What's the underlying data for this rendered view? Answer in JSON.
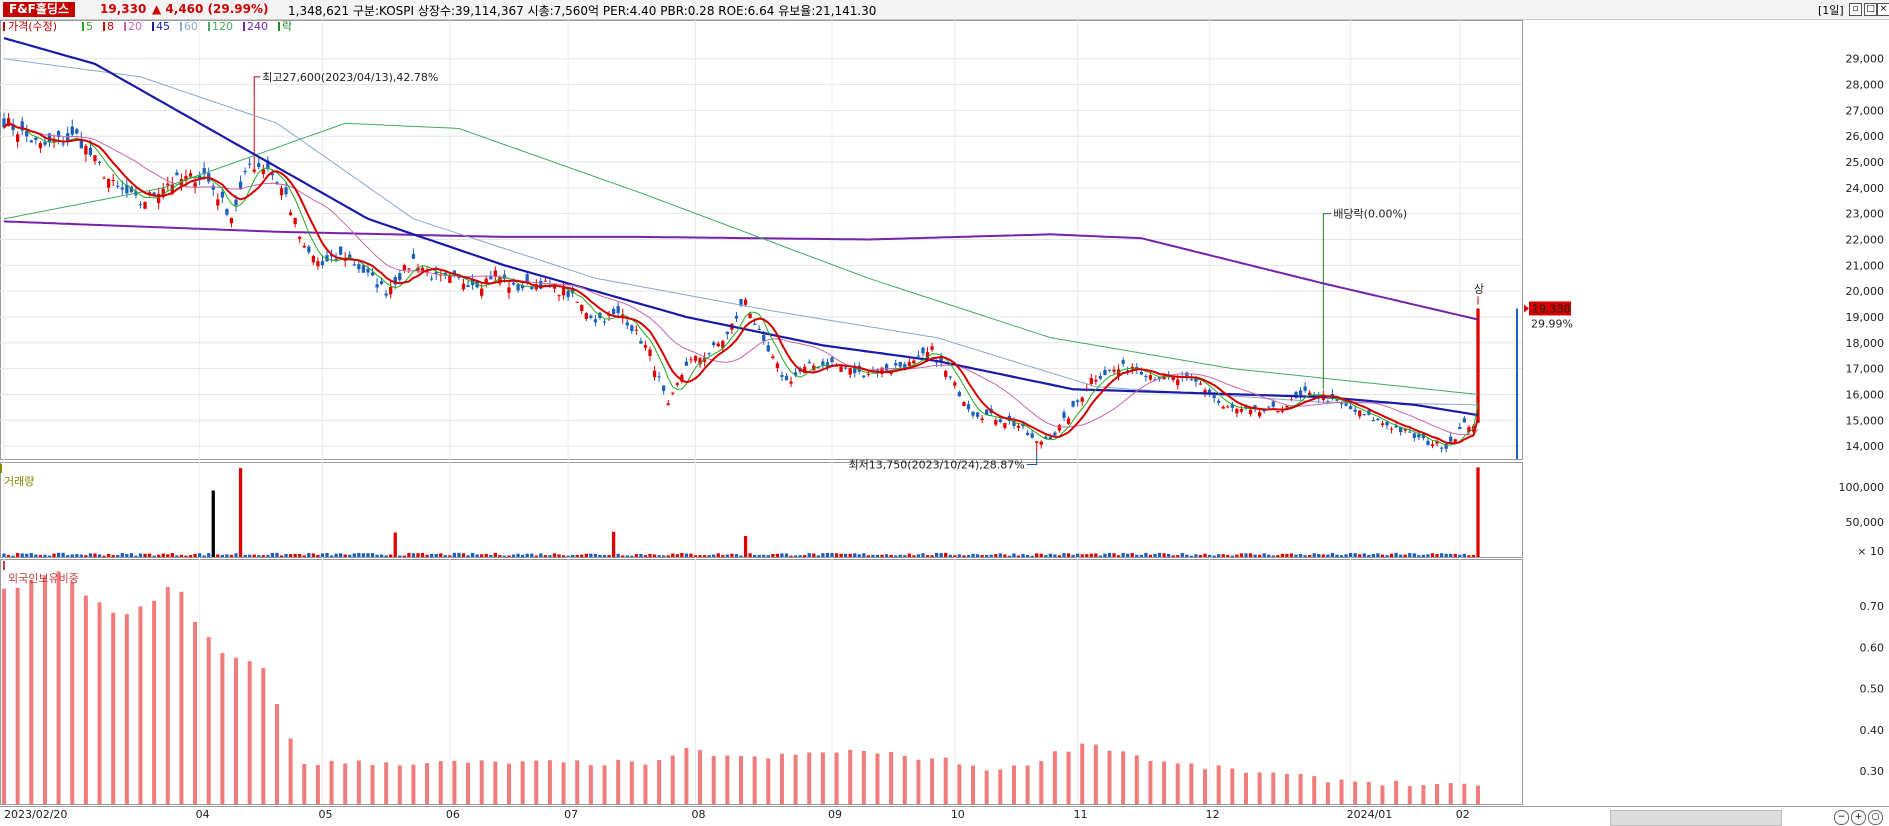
{
  "header": {
    "stock_name": "F&F홀딩스",
    "price": "19,330",
    "change": "▲ 4,460 (29.99%)",
    "info": "1,348,621  구분:KOSPI 상장수:39,114,367 시총:7,560억 PER:4.40 PBR:0.28 ROE:6.64 유보율:21,141.30",
    "period": "[1일]"
  },
  "legend": {
    "price_label": "가격(수정)",
    "ma_labels": [
      "5",
      "8",
      "20",
      "45",
      "60",
      "120",
      "240"
    ],
    "ma_colors": [
      "#22aa22",
      "#d40000",
      "#cc66aa",
      "#1a1aa8",
      "#88aacc",
      "#44aa66",
      "#7722aa"
    ],
    "ex_label": "락",
    "volume_label": "거래량",
    "foreign_label": "외국인보유비중"
  },
  "annotations": {
    "high": "최고27,600(2023/04/13),42.78%",
    "low": "최저13,750(2023/10/24),28.87%",
    "dividend": "배당락(0.00%)",
    "upper_limit": "상",
    "last_price": "19,330",
    "last_pct": "29.99%"
  },
  "colors": {
    "up": "#e00000",
    "down": "#1c5fbf",
    "bg_panel": "#ffffff",
    "grid": "#e6e6e6",
    "foreign": "#f07c7c"
  },
  "chart_data": [
    {
      "type": "candlestick",
      "title": "가격(수정)",
      "x_labels": [
        "2023/02/20",
        "04",
        "05",
        "06",
        "07",
        "08",
        "09",
        "10",
        "11",
        "12",
        "2024/01",
        "02"
      ],
      "y_ticks": [
        14000,
        15000,
        16000,
        17000,
        18000,
        19000,
        20000,
        21000,
        22000,
        23000,
        24000,
        25000,
        26000,
        27000,
        28000,
        29000
      ],
      "ylim": [
        13500,
        30500
      ],
      "anchors": [
        {
          "i": 0,
          "close": 26600
        },
        {
          "i": 8,
          "close": 25600
        },
        {
          "i": 16,
          "close": 26000
        },
        {
          "i": 24,
          "close": 24100
        },
        {
          "i": 30,
          "close": 23400
        },
        {
          "i": 36,
          "close": 24200
        },
        {
          "i": 44,
          "close": 24500
        },
        {
          "i": 50,
          "close": 22900
        },
        {
          "i": 54,
          "close": 24900
        },
        {
          "i": 58,
          "close": 24800
        },
        {
          "i": 62,
          "close": 23700
        },
        {
          "i": 66,
          "close": 21600
        },
        {
          "i": 70,
          "close": 21000
        },
        {
          "i": 75,
          "close": 21400
        },
        {
          "i": 80,
          "close": 20600
        },
        {
          "i": 84,
          "close": 20000
        },
        {
          "i": 90,
          "close": 21200
        },
        {
          "i": 95,
          "close": 20500
        },
        {
          "i": 100,
          "close": 20400
        },
        {
          "i": 105,
          "close": 20300
        },
        {
          "i": 108,
          "close": 20700
        },
        {
          "i": 112,
          "close": 20100
        },
        {
          "i": 118,
          "close": 20300
        },
        {
          "i": 124,
          "close": 19900
        },
        {
          "i": 130,
          "close": 18900
        },
        {
          "i": 136,
          "close": 19100
        },
        {
          "i": 142,
          "close": 17600
        },
        {
          "i": 146,
          "close": 15500
        },
        {
          "i": 150,
          "close": 17200
        },
        {
          "i": 155,
          "close": 17600
        },
        {
          "i": 159,
          "close": 18300
        },
        {
          "i": 163,
          "close": 19700
        },
        {
          "i": 167,
          "close": 17900
        },
        {
          "i": 172,
          "close": 16500
        },
        {
          "i": 177,
          "close": 17100
        },
        {
          "i": 182,
          "close": 17200
        },
        {
          "i": 188,
          "close": 16800
        },
        {
          "i": 194,
          "close": 17000
        },
        {
          "i": 200,
          "close": 17200
        },
        {
          "i": 204,
          "close": 17700
        },
        {
          "i": 208,
          "close": 16600
        },
        {
          "i": 213,
          "close": 15300
        },
        {
          "i": 218,
          "close": 15100
        },
        {
          "i": 223,
          "close": 14800
        },
        {
          "i": 227,
          "close": 14100
        },
        {
          "i": 231,
          "close": 14500
        },
        {
          "i": 235,
          "close": 15400
        },
        {
          "i": 239,
          "close": 16600
        },
        {
          "i": 243,
          "close": 16900
        },
        {
          "i": 248,
          "close": 17100
        },
        {
          "i": 253,
          "close": 16700
        },
        {
          "i": 258,
          "close": 16600
        },
        {
          "i": 263,
          "close": 16400
        },
        {
          "i": 268,
          "close": 15500
        },
        {
          "i": 274,
          "close": 15300
        },
        {
          "i": 280,
          "close": 15400
        },
        {
          "i": 286,
          "close": 16000
        },
        {
          "i": 290,
          "close": 15900
        },
        {
          "i": 295,
          "close": 15500
        },
        {
          "i": 300,
          "close": 15100
        },
        {
          "i": 306,
          "close": 14700
        },
        {
          "i": 312,
          "close": 14200
        },
        {
          "i": 317,
          "close": 14000
        },
        {
          "i": 321,
          "close": 14800
        },
        {
          "i": 323,
          "close": 14870
        },
        {
          "i": 324,
          "close": 19330
        }
      ],
      "count": 325,
      "last": {
        "open": 14900,
        "high": 19330,
        "low": 14900,
        "close": 19330
      },
      "high_point": {
        "i": 55,
        "value": 27600,
        "date": "2023/04/13"
      },
      "low_point": {
        "i": 227,
        "value": 13750,
        "date": "2023/10/24"
      },
      "ma_periods": [
        5,
        8,
        20,
        45,
        60,
        120,
        240
      ],
      "ma240_anchors": [
        {
          "i": 0,
          "v": 22700
        },
        {
          "i": 60,
          "v": 22300
        },
        {
          "i": 110,
          "v": 22100
        },
        {
          "i": 140,
          "v": 22100
        },
        {
          "i": 190,
          "v": 22000
        },
        {
          "i": 230,
          "v": 22200
        },
        {
          "i": 250,
          "v": 22050
        },
        {
          "i": 290,
          "v": 20300
        },
        {
          "i": 324,
          "v": 18900
        }
      ],
      "ma120_anchors": [
        {
          "i": 0,
          "v": 22800
        },
        {
          "i": 35,
          "v": 24000
        },
        {
          "i": 75,
          "v": 26500
        },
        {
          "i": 100,
          "v": 26300
        },
        {
          "i": 140,
          "v": 23800
        },
        {
          "i": 190,
          "v": 20500
        },
        {
          "i": 230,
          "v": 18200
        },
        {
          "i": 270,
          "v": 17000
        },
        {
          "i": 324,
          "v": 16000
        }
      ],
      "ma60_anchors": [
        {
          "i": 0,
          "v": 29000
        },
        {
          "i": 30,
          "v": 28300
        },
        {
          "i": 60,
          "v": 26500
        },
        {
          "i": 90,
          "v": 22800
        },
        {
          "i": 130,
          "v": 20500
        },
        {
          "i": 170,
          "v": 19200
        },
        {
          "i": 205,
          "v": 18200
        },
        {
          "i": 240,
          "v": 16300
        },
        {
          "i": 290,
          "v": 15700
        },
        {
          "i": 324,
          "v": 15600
        }
      ],
      "ma45_anchors": [
        {
          "i": 0,
          "v": 29800
        },
        {
          "i": 20,
          "v": 28800
        },
        {
          "i": 50,
          "v": 25800
        },
        {
          "i": 80,
          "v": 22800
        },
        {
          "i": 110,
          "v": 21000
        },
        {
          "i": 150,
          "v": 19000
        },
        {
          "i": 180,
          "v": 17900
        },
        {
          "i": 205,
          "v": 17300
        },
        {
          "i": 235,
          "v": 16200
        },
        {
          "i": 290,
          "v": 15900
        },
        {
          "i": 310,
          "v": 15600
        },
        {
          "i": 324,
          "v": 15200
        }
      ]
    },
    {
      "type": "bar",
      "title": "거래량",
      "y_ticks": [
        "100,000",
        "50,000",
        "× 10"
      ],
      "ylim_x10": [
        0,
        130000
      ],
      "baseline_x10": 3000,
      "spikes": [
        {
          "i": 46,
          "value": 95000,
          "color": "#000000"
        },
        {
          "i": 52,
          "value": 127000,
          "color": "#e00000"
        },
        {
          "i": 86,
          "value": 35000,
          "color": "#e00000"
        },
        {
          "i": 134,
          "value": 36000,
          "color": "#e00000"
        },
        {
          "i": 163,
          "value": 30000,
          "color": "#e00000"
        },
        {
          "i": 324,
          "value": 128000,
          "color": "#e00000"
        }
      ]
    },
    {
      "type": "bar",
      "title": "외국인보유비중",
      "y_ticks": [
        0.7,
        0.6,
        0.5,
        0.4,
        0.3
      ],
      "ylim": [
        0.22,
        0.8
      ],
      "bar_step": 3,
      "anchors": [
        {
          "i": 0,
          "v": 0.74
        },
        {
          "i": 12,
          "v": 0.78
        },
        {
          "i": 18,
          "v": 0.73
        },
        {
          "i": 25,
          "v": 0.68
        },
        {
          "i": 32,
          "v": 0.7
        },
        {
          "i": 38,
          "v": 0.76
        },
        {
          "i": 42,
          "v": 0.66
        },
        {
          "i": 48,
          "v": 0.58
        },
        {
          "i": 56,
          "v": 0.57
        },
        {
          "i": 58,
          "v": 0.52
        },
        {
          "i": 62,
          "v": 0.4
        },
        {
          "i": 66,
          "v": 0.32
        },
        {
          "i": 145,
          "v": 0.32
        },
        {
          "i": 150,
          "v": 0.35
        },
        {
          "i": 165,
          "v": 0.33
        },
        {
          "i": 185,
          "v": 0.35
        },
        {
          "i": 205,
          "v": 0.33
        },
        {
          "i": 220,
          "v": 0.3
        },
        {
          "i": 238,
          "v": 0.37
        },
        {
          "i": 255,
          "v": 0.32
        },
        {
          "i": 290,
          "v": 0.28
        },
        {
          "i": 324,
          "v": 0.26
        }
      ]
    }
  ]
}
